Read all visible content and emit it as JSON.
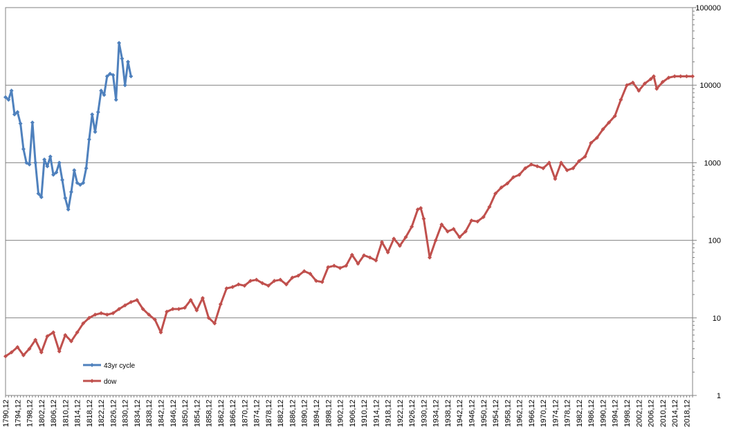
{
  "chart_data": {
    "type": "line",
    "y_scale": "log",
    "ylim": [
      1,
      100000
    ],
    "y_ticks": [
      "1",
      "10",
      "100",
      "1000",
      "10000",
      "100000"
    ],
    "x_tick_labels": [
      "1790,12",
      "1794,12",
      "1798,12",
      "1802,12",
      "1806,12",
      "1810,12",
      "1814,12",
      "1818,12",
      "1822,12",
      "1826,12",
      "1830,12",
      "1834,12",
      "1838,12",
      "1842,12",
      "1846,12",
      "1850,12",
      "1854,12",
      "1858,12",
      "1862,12",
      "1866,12",
      "1870,12",
      "1874,12",
      "1878,12",
      "1882,12",
      "1886,12",
      "1890,12",
      "1894,12",
      "1898,12",
      "1902,12",
      "1906,12",
      "1910,12",
      "1914,12",
      "1918,12",
      "1922,12",
      "1926,12",
      "1930,12",
      "1934,12",
      "1938,12",
      "1942,12",
      "1946,12",
      "1950,12",
      "1954,12",
      "1958,12",
      "1962,12",
      "1966,12",
      "1970,12",
      "1974,12",
      "1978,12",
      "1982,12",
      "1986,12",
      "1990,12",
      "1994,12",
      "1998,12",
      "2002,12",
      "2006,12",
      "2010,12",
      "2014,12",
      "2018,12"
    ],
    "legend_position": "bottom-left",
    "grid": true,
    "colors": {
      "cycle": "#4f81bd",
      "dow": "#c0504d",
      "grid": "#808080"
    },
    "series": [
      {
        "name": "43yr cycle",
        "x": [
          1790,
          1791,
          1792,
          1793,
          1794,
          1795,
          1796,
          1797,
          1798,
          1799,
          1800,
          1801,
          1802,
          1803,
          1804,
          1805,
          1806,
          1807,
          1808,
          1809,
          1810,
          1811,
          1812,
          1813,
          1814,
          1815,
          1816,
          1817,
          1818,
          1819,
          1820,
          1821,
          1822,
          1823,
          1824,
          1825,
          1826,
          1827,
          1828,
          1829,
          1830,
          1831,
          1832
        ],
        "values": [
          7000,
          6500,
          8500,
          4200,
          4500,
          3200,
          1500,
          1000,
          950,
          3300,
          1000,
          400,
          360,
          1100,
          900,
          1200,
          700,
          750,
          1000,
          600,
          350,
          250,
          420,
          800,
          550,
          520,
          550,
          850,
          2000,
          4200,
          2500,
          4500,
          8500,
          7500,
          13000,
          14000,
          13500,
          6500,
          35000,
          22000,
          10000,
          20000,
          13000
        ]
      },
      {
        "name": "dow",
        "x": [
          1790,
          1792,
          1794,
          1796,
          1798,
          1800,
          1802,
          1804,
          1806,
          1808,
          1810,
          1812,
          1814,
          1816,
          1818,
          1820,
          1822,
          1824,
          1826,
          1828,
          1830,
          1832,
          1834,
          1836,
          1838,
          1840,
          1842,
          1844,
          1846,
          1848,
          1850,
          1852,
          1854,
          1856,
          1858,
          1860,
          1862,
          1864,
          1866,
          1868,
          1870,
          1872,
          1874,
          1876,
          1878,
          1880,
          1882,
          1884,
          1886,
          1888,
          1890,
          1892,
          1894,
          1896,
          1898,
          1900,
          1902,
          1904,
          1906,
          1908,
          1910,
          1912,
          1914,
          1916,
          1918,
          1920,
          1922,
          1924,
          1926,
          1928,
          1929,
          1930,
          1932,
          1934,
          1936,
          1938,
          1940,
          1942,
          1944,
          1946,
          1948,
          1950,
          1952,
          1954,
          1956,
          1958,
          1960,
          1962,
          1964,
          1966,
          1968,
          1970,
          1972,
          1974,
          1976,
          1978,
          1980,
          1982,
          1984,
          1986,
          1988,
          1990,
          1992,
          1994,
          1996,
          1998,
          2000,
          2002,
          2004,
          2006,
          2007,
          2008,
          2010,
          2012,
          2014,
          2016,
          2018,
          2020
        ],
        "values": [
          3.2,
          3.6,
          4.2,
          3.3,
          4.0,
          5.2,
          3.6,
          5.8,
          6.5,
          3.7,
          6.0,
          5.0,
          6.5,
          8.5,
          10.0,
          11.0,
          11.5,
          11.0,
          11.5,
          13.0,
          14.5,
          16.0,
          17.0,
          13.0,
          11.0,
          9.5,
          6.5,
          12.0,
          13.0,
          13.0,
          13.5,
          17.0,
          12.5,
          18.0,
          10.0,
          8.5,
          15.0,
          24.0,
          25.0,
          27.0,
          26.0,
          30.0,
          31.0,
          28.0,
          26.0,
          30.0,
          31.0,
          27.0,
          33.0,
          35.0,
          40.0,
          37.0,
          30.0,
          29.0,
          45.0,
          47.0,
          44.0,
          47.0,
          65.0,
          50.0,
          64.0,
          60.0,
          55.0,
          95.0,
          70.0,
          105.0,
          85.0,
          110.0,
          150.0,
          250.0,
          260.0,
          190.0,
          60.0,
          100.0,
          160.0,
          130.0,
          140.0,
          110.0,
          130.0,
          180.0,
          175.0,
          200.0,
          270.0,
          400.0,
          480.0,
          540.0,
          650.0,
          700.0,
          850.0,
          950.0,
          900.0,
          850.0,
          1000.0,
          620.0,
          1000.0,
          800.0,
          850.0,
          1050.0,
          1200.0,
          1800.0,
          2100.0,
          2700.0,
          3300.0,
          4000.0,
          6500.0,
          10000.0,
          10800.0,
          8500.0,
          10500.0,
          12000.0,
          13000.0,
          9000.0,
          11000.0,
          12500.0,
          13000.0,
          13000.0,
          13000.0,
          13000.0
        ]
      }
    ]
  }
}
